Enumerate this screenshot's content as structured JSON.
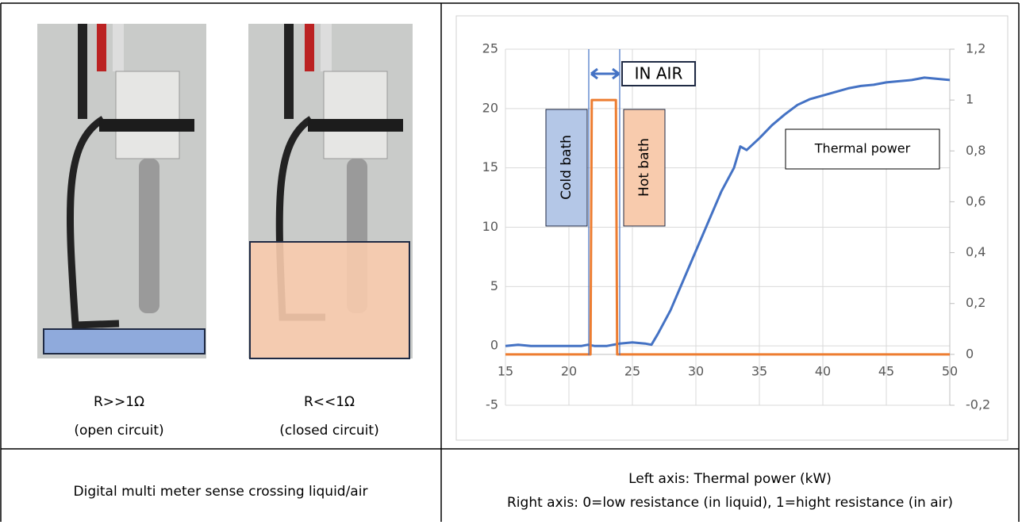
{
  "photo_labels": [
    {
      "line1": "R>>1Ω",
      "line2": "(open circuit)"
    },
    {
      "line1": "R<<1Ω",
      "line2": "(closed circuit)"
    }
  ],
  "caption_left": "Digital multi meter sense crossing liquid/air",
  "caption_right": [
    "Left axis: Thermal power (kW)",
    "Right axis: 0=low resistance (in liquid), 1=hight resistance (in air)"
  ],
  "chart_data": {
    "type": "line",
    "annotations": [
      "IN AIR",
      "Cold bath",
      "Hot bath"
    ],
    "series": [
      {
        "name": "Thermal power",
        "color": "#4472c4",
        "x": [
          15,
          16,
          17,
          18,
          19,
          20,
          21,
          21.5,
          22,
          23,
          24,
          25,
          26,
          26.5,
          27,
          28,
          29,
          30,
          31,
          32,
          33,
          33.5,
          34,
          35,
          36,
          37,
          38,
          39,
          40,
          41,
          42,
          43,
          44,
          45,
          46,
          47,
          48,
          49,
          50
        ],
        "values": [
          0,
          0.1,
          0,
          0,
          0,
          0,
          0,
          0.1,
          0,
          0,
          0.2,
          0.3,
          0.2,
          0.1,
          1,
          3,
          5.5,
          8,
          10.5,
          13,
          15,
          16.8,
          16.5,
          17.5,
          18.6,
          19.5,
          20.3,
          20.8,
          21.1,
          21.4,
          21.7,
          21.9,
          22,
          22.2,
          22.3,
          22.4,
          22.6,
          22.5,
          22.4
        ]
      },
      {
        "color": "#ed7d31",
        "axis": "y2",
        "x": [
          15,
          21.7,
          21.8,
          23.7,
          23.8,
          50
        ],
        "values": [
          0,
          0,
          1,
          1,
          0,
          0
        ]
      }
    ],
    "xlim": [
      15,
      50
    ],
    "xticks": [
      15,
      20,
      25,
      30,
      35,
      40,
      45,
      50
    ],
    "ylim": [
      -5,
      25
    ],
    "yticks": [
      -5,
      0,
      5,
      10,
      15,
      20,
      25
    ],
    "y2lim": [
      -0.2,
      1.2
    ],
    "y2ticks": [
      {
        "value": -0.2,
        "label": "-0,2"
      },
      0,
      {
        "value": 0.2,
        "label": "0,2"
      },
      {
        "value": 0.4,
        "label": "0,4"
      },
      {
        "value": 0.6,
        "label": "0,6"
      },
      {
        "value": 0.8,
        "label": "0,8"
      },
      1,
      {
        "value": 1.2,
        "label": "1,2"
      }
    ],
    "grid": true
  }
}
